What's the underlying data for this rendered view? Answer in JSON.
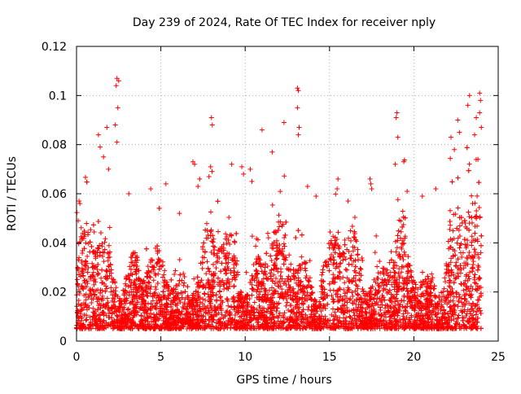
{
  "chart_data": {
    "type": "scatter",
    "title": "Day 239 of 2024, Rate Of TEC Index for receiver nply",
    "xlabel": "GPS time / hours",
    "ylabel": "ROTI / TECUs",
    "xlim": [
      0,
      25
    ],
    "ylim": [
      0,
      0.12
    ],
    "x_ticks": [
      0,
      5,
      10,
      15,
      20,
      25
    ],
    "x_tick_labels": [
      "0",
      "5",
      "10",
      "15",
      "20",
      "25"
    ],
    "y_ticks": [
      0,
      0.02,
      0.04,
      0.06,
      0.08,
      0.1,
      0.12
    ],
    "y_tick_labels": [
      "0",
      "0.02",
      "0.04",
      "0.06",
      "0.08",
      "0.1",
      "0.12"
    ],
    "grid": true,
    "marker": "+",
    "color": "#ff0000",
    "x_data_range": [
      0,
      24
    ],
    "bulk_range_typical": [
      0.005,
      0.035
    ],
    "series": [
      {
        "name": "ROTI",
        "points": [
          [
            2.4,
            0.107
          ],
          [
            2.5,
            0.106
          ],
          [
            2.35,
            0.104
          ],
          [
            2.45,
            0.095
          ],
          [
            2.3,
            0.088
          ],
          [
            2.4,
            0.081
          ],
          [
            13.1,
            0.103
          ],
          [
            13.15,
            0.102
          ],
          [
            13.1,
            0.095
          ],
          [
            13.2,
            0.087
          ],
          [
            13.15,
            0.084
          ],
          [
            19.0,
            0.093
          ],
          [
            18.95,
            0.091
          ],
          [
            19.05,
            0.083
          ],
          [
            18.9,
            0.072
          ],
          [
            12.3,
            0.089
          ],
          [
            11.0,
            0.086
          ],
          [
            11.6,
            0.077
          ],
          [
            8.0,
            0.091
          ],
          [
            8.05,
            0.088
          ],
          [
            7.95,
            0.071
          ],
          [
            1.8,
            0.087
          ],
          [
            1.3,
            0.084
          ],
          [
            1.4,
            0.079
          ],
          [
            1.6,
            0.075
          ],
          [
            1.9,
            0.07
          ],
          [
            0.15,
            0.057
          ],
          [
            0.2,
            0.056
          ],
          [
            0.1,
            0.049
          ],
          [
            22.6,
            0.09
          ],
          [
            22.7,
            0.085
          ],
          [
            22.2,
            0.083
          ],
          [
            22.4,
            0.078
          ],
          [
            23.3,
            0.1
          ],
          [
            23.2,
            0.096
          ],
          [
            23.9,
            0.101
          ],
          [
            23.95,
            0.098
          ],
          [
            23.9,
            0.093
          ],
          [
            24.0,
            0.087
          ],
          [
            23.7,
            0.091
          ],
          [
            23.6,
            0.084
          ],
          [
            23.8,
            0.074
          ],
          [
            17.4,
            0.066
          ],
          [
            17.45,
            0.064
          ],
          [
            17.5,
            0.062
          ],
          [
            15.5,
            0.066
          ],
          [
            15.45,
            0.062
          ],
          [
            6.9,
            0.073
          ],
          [
            7.0,
            0.072
          ],
          [
            7.3,
            0.066
          ],
          [
            7.2,
            0.063
          ],
          [
            9.2,
            0.072
          ],
          [
            9.8,
            0.071
          ],
          [
            9.9,
            0.068
          ],
          [
            10.3,
            0.07
          ],
          [
            10.4,
            0.065
          ],
          [
            13.7,
            0.063
          ],
          [
            14.2,
            0.059
          ],
          [
            3.1,
            0.06
          ],
          [
            4.4,
            0.062
          ],
          [
            5.3,
            0.064
          ],
          [
            20.5,
            0.059
          ],
          [
            21.3,
            0.062
          ],
          [
            19.6,
            0.061
          ],
          [
            16.1,
            0.057
          ],
          [
            6.1,
            0.052
          ]
        ]
      }
    ]
  }
}
